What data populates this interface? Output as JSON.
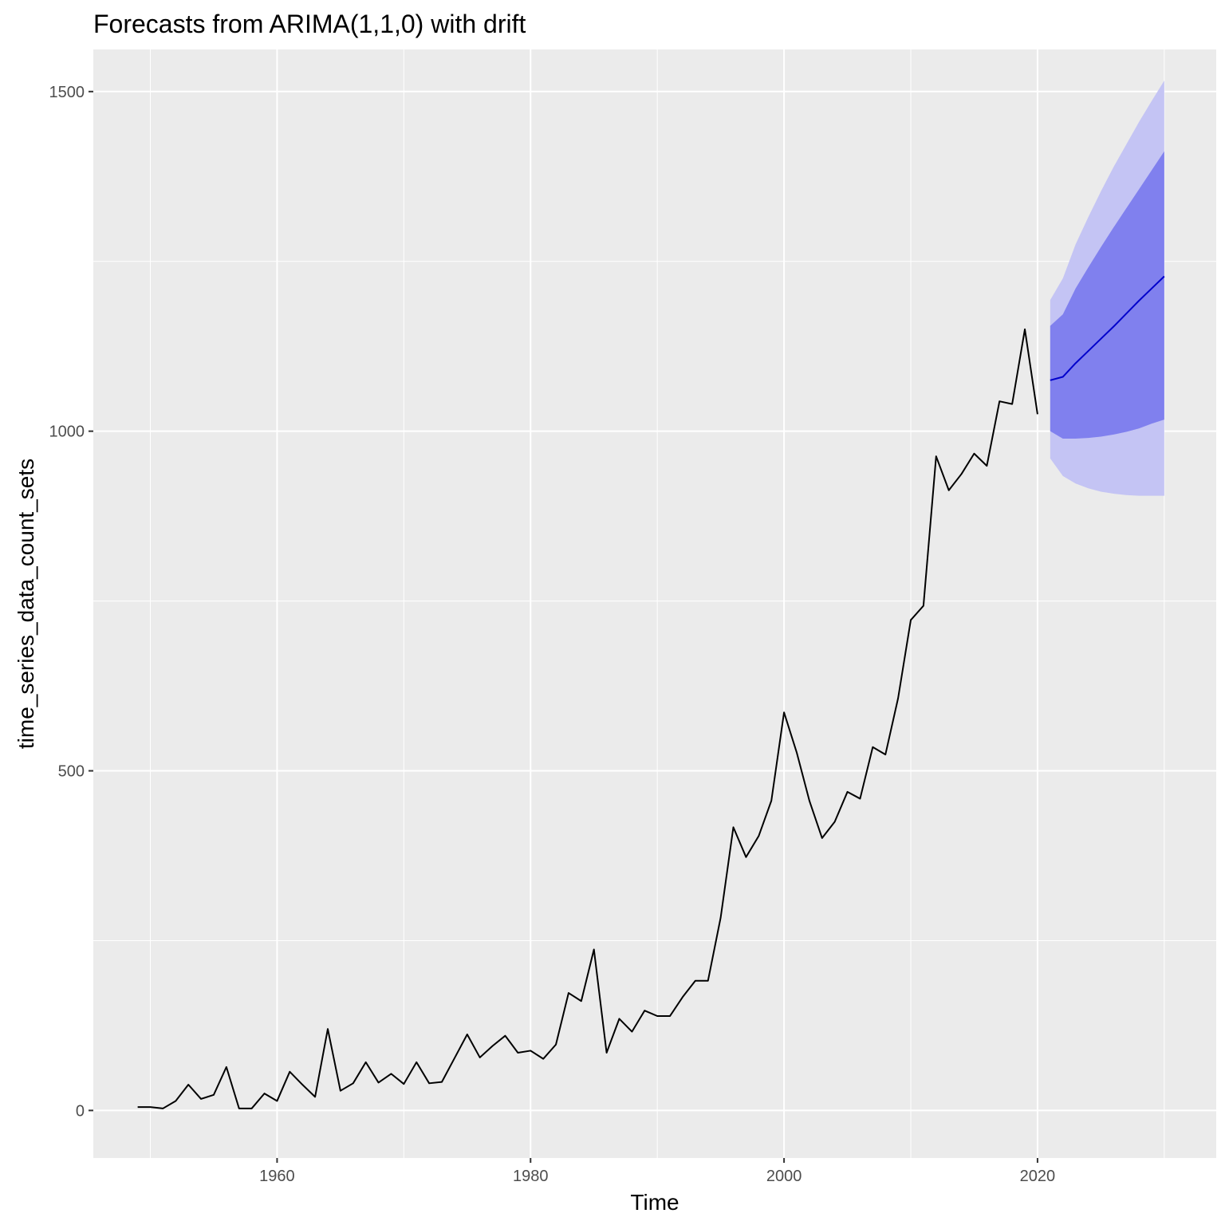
{
  "chart_data": {
    "type": "line",
    "title": "Forecasts from ARIMA(1,1,0) with drift",
    "xlabel": "Time",
    "ylabel": "time_series_data_count_sets",
    "xlim": [
      1945.5,
      2034.1
    ],
    "ylim": [
      -70,
      1562
    ],
    "x_major_ticks": [
      1960,
      1980,
      2000,
      2020
    ],
    "x_tick_labels": [
      "1960",
      "1980",
      "2000",
      "2020"
    ],
    "x_minor_ticks": [
      1950,
      1970,
      1990,
      2010,
      2030
    ],
    "y_major_ticks": [
      0,
      500,
      1000,
      1500
    ],
    "y_tick_labels": [
      "0",
      "500",
      "1000",
      "1500"
    ],
    "y_minor_ticks": [
      250,
      750,
      1250
    ],
    "grid": true,
    "legend": "none",
    "colors": {
      "panel_background": "#ebebeb",
      "grid": "#ffffff",
      "observed_line": "#000000",
      "forecast_line": "#0000cc",
      "band_80": "#8080ee",
      "band_95": "#c4c4f4"
    },
    "series": [
      {
        "role": "observed",
        "x": [
          1949,
          1950,
          1951,
          1952,
          1953,
          1954,
          1955,
          1956,
          1957,
          1958,
          1959,
          1960,
          1961,
          1962,
          1963,
          1964,
          1965,
          1966,
          1967,
          1968,
          1969,
          1970,
          1971,
          1972,
          1973,
          1974,
          1975,
          1976,
          1977,
          1978,
          1979,
          1980,
          1981,
          1982,
          1983,
          1984,
          1985,
          1986,
          1987,
          1988,
          1989,
          1990,
          1991,
          1992,
          1993,
          1994,
          1995,
          1996,
          1997,
          1998,
          1999,
          2000,
          2001,
          2002,
          2003,
          2004,
          2005,
          2006,
          2007,
          2008,
          2009,
          2010,
          2011,
          2012,
          2013,
          2014,
          2015,
          2016,
          2017,
          2018,
          2019,
          2020
        ],
        "y": [
          5,
          5,
          3,
          14,
          38,
          17,
          23,
          64,
          3,
          3,
          25,
          14,
          57,
          38,
          20,
          120,
          29,
          40,
          71,
          41,
          54,
          39,
          71,
          40,
          42,
          77,
          112,
          78,
          95,
          110,
          85,
          88,
          76,
          97,
          173,
          161,
          237,
          85,
          135,
          116,
          147,
          139,
          139,
          167,
          191,
          191,
          284,
          417,
          373,
          404,
          456,
          586,
          527,
          456,
          401,
          425,
          469,
          459,
          535,
          524,
          607,
          722,
          743,
          963,
          913,
          937,
          967,
          949,
          1044,
          1040,
          1150,
          1025
        ]
      },
      {
        "role": "forecast",
        "x": [
          2021,
          2022,
          2023,
          2024,
          2025,
          2026,
          2027,
          2028,
          2029,
          2030
        ],
        "y": [
          1075,
          1080,
          1100,
          1118,
          1136,
          1154,
          1173,
          1192,
          1210,
          1228
        ]
      }
    ],
    "bands": [
      {
        "level": "95",
        "x": [
          2021,
          2022,
          2023,
          2024,
          2025,
          2026,
          2027,
          2028,
          2029,
          2030
        ],
        "lower": [
          960,
          934,
          923,
          916,
          911,
          908,
          906,
          905,
          905,
          905
        ],
        "upper": [
          1193,
          1225,
          1275,
          1315,
          1353,
          1389,
          1422,
          1455,
          1486,
          1516
        ]
      },
      {
        "level": "80",
        "x": [
          2021,
          2022,
          2023,
          2024,
          2025,
          2026,
          2027,
          2028,
          2029,
          2030
        ],
        "lower": [
          1000,
          989,
          989,
          990,
          992,
          995,
          999,
          1004,
          1011,
          1017
        ],
        "upper": [
          1155,
          1172,
          1210,
          1241,
          1271,
          1300,
          1328,
          1356,
          1384,
          1412
        ]
      }
    ]
  }
}
